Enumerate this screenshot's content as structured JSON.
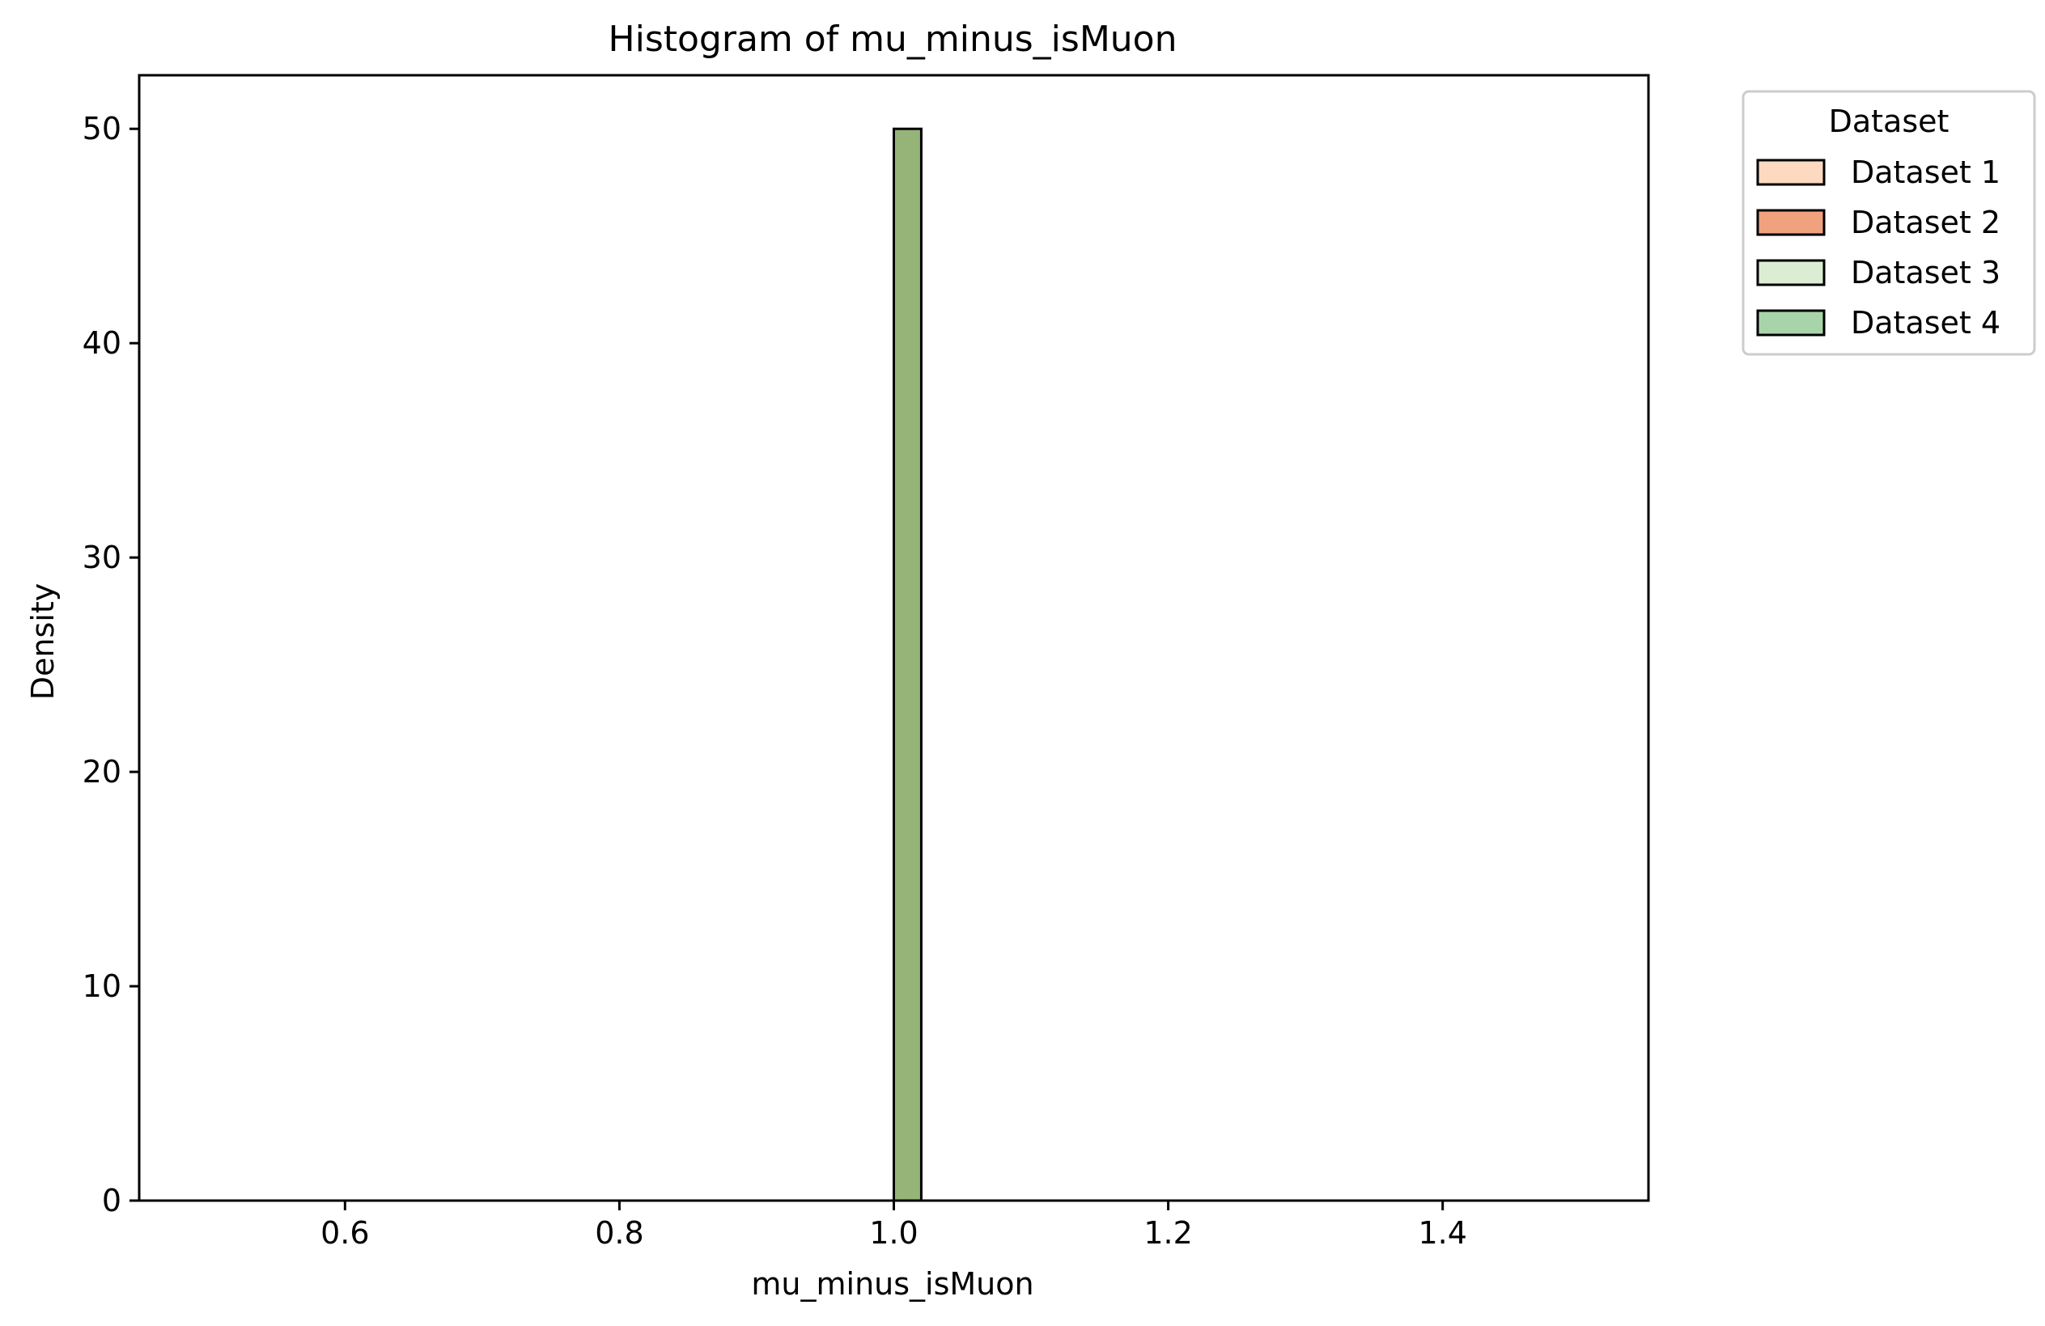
{
  "chart_data": {
    "type": "bar",
    "title": "Histogram of mu_minus_isMuon",
    "xlabel": "mu_minus_isMuon",
    "ylabel": "Density",
    "xlim": [
      0.45,
      1.55
    ],
    "ylim": [
      0,
      52.5
    ],
    "xticks": [
      0.6,
      0.8,
      1.0,
      1.2,
      1.4
    ],
    "xtick_labels": [
      "0.6",
      "0.8",
      "1.0",
      "1.2",
      "1.4"
    ],
    "yticks": [
      0,
      10,
      20,
      30,
      40,
      50
    ],
    "ytick_labels": [
      "0",
      "10",
      "20",
      "30",
      "40",
      "50"
    ],
    "data_range": [
      0.5,
      1.5
    ],
    "bins": [
      {
        "x0": 1.0,
        "x1": 1.02,
        "value": 50
      }
    ],
    "series": [
      {
        "name": "Dataset 1",
        "color": "#fdd9bf"
      },
      {
        "name": "Dataset 2",
        "color": "#f0a27f"
      },
      {
        "name": "Dataset 3",
        "color": "#dbeed4"
      },
      {
        "name": "Dataset 4",
        "color": "#a7d5a9"
      }
    ],
    "overlap_color": "#97b478",
    "legend": {
      "title": "Dataset",
      "placement": "outside-top-right"
    },
    "grid": false
  }
}
